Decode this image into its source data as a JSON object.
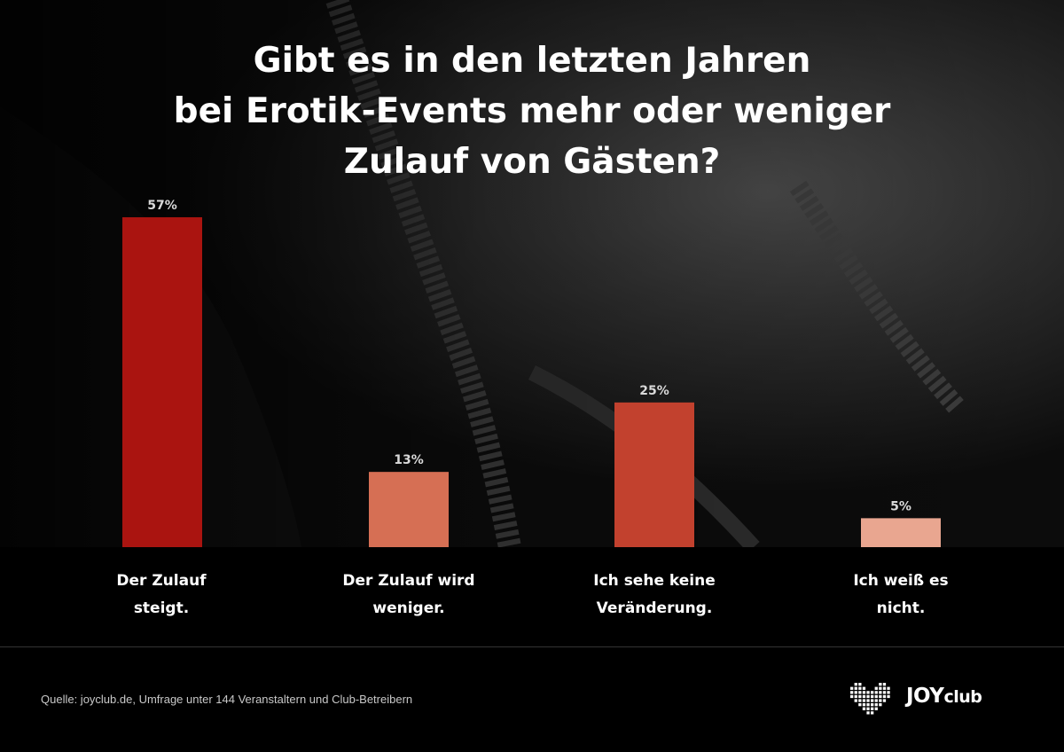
{
  "title_lines": [
    "Gibt es in den letzten Jahren",
    "bei Erotik-Events mehr oder weniger",
    "Zulauf von Gästen?"
  ],
  "chart_data": {
    "type": "bar",
    "title": "Gibt es in den letzten Jahren bei Erotik-Events mehr oder weniger Zulauf von Gästen?",
    "categories": [
      "Der Zulauf steigt.",
      "Der Zulauf wird weniger.",
      "Ich sehe keine Veränderung.",
      "Ich weiß es nicht."
    ],
    "category_lines": [
      [
        "Der Zulauf",
        "steigt."
      ],
      [
        "Der Zulauf wird",
        "weniger."
      ],
      [
        "Ich sehe keine",
        "Veränderung."
      ],
      [
        "Ich weiß es",
        "nicht."
      ]
    ],
    "values": [
      57,
      13,
      25,
      5
    ],
    "value_labels": [
      "57%",
      "13%",
      "25%",
      "5%"
    ],
    "colors": [
      "#aa1410",
      "#d66f54",
      "#c2412e",
      "#e9a690"
    ],
    "ylim": [
      0,
      57
    ],
    "grid": false,
    "legend": "none"
  },
  "source": "Quelle: joyclub.de, Umfrage unter 144 Veranstaltern und Club-Betreibern",
  "brand": {
    "name_main": "JOY",
    "name_sub": "club",
    "logo_icon": "pixel-heart-icon"
  }
}
